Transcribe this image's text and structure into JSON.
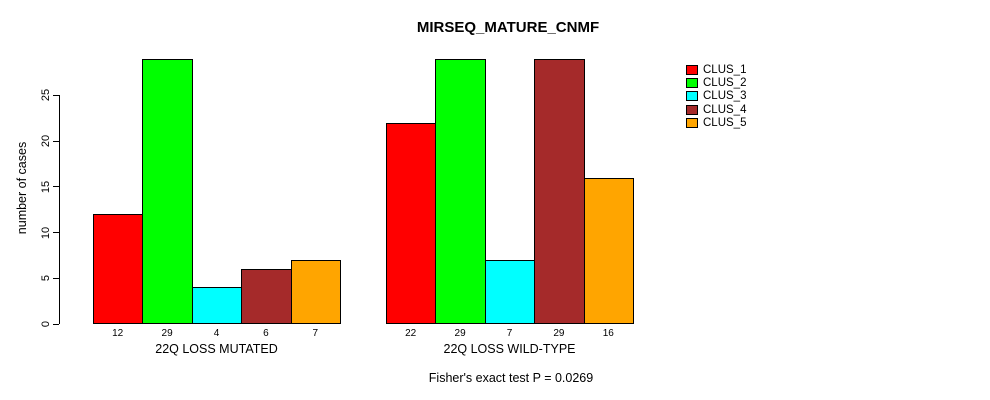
{
  "chart_data": {
    "type": "bar",
    "title": "MIRSEQ_MATURE_CNMF",
    "ylabel": "number of cases",
    "xlabel": "",
    "yticks": [
      0,
      5,
      10,
      15,
      20,
      25
    ],
    "ylim": [
      0,
      29
    ],
    "grid": false,
    "legend_position": "right",
    "series_names": [
      "CLUS_1",
      "CLUS_2",
      "CLUS_3",
      "CLUS_4",
      "CLUS_5"
    ],
    "colors": [
      "#FF0000",
      "#00FF00",
      "#00FFFF",
      "#A52A2A",
      "#FFA500"
    ],
    "groups": [
      {
        "label": "22Q LOSS MUTATED",
        "values": [
          12,
          29,
          4,
          6,
          7
        ]
      },
      {
        "label": "22Q LOSS WILD-TYPE",
        "values": [
          22,
          29,
          7,
          29,
          16
        ]
      }
    ],
    "annotation": "Fisher's exact test P = 0.0269"
  }
}
